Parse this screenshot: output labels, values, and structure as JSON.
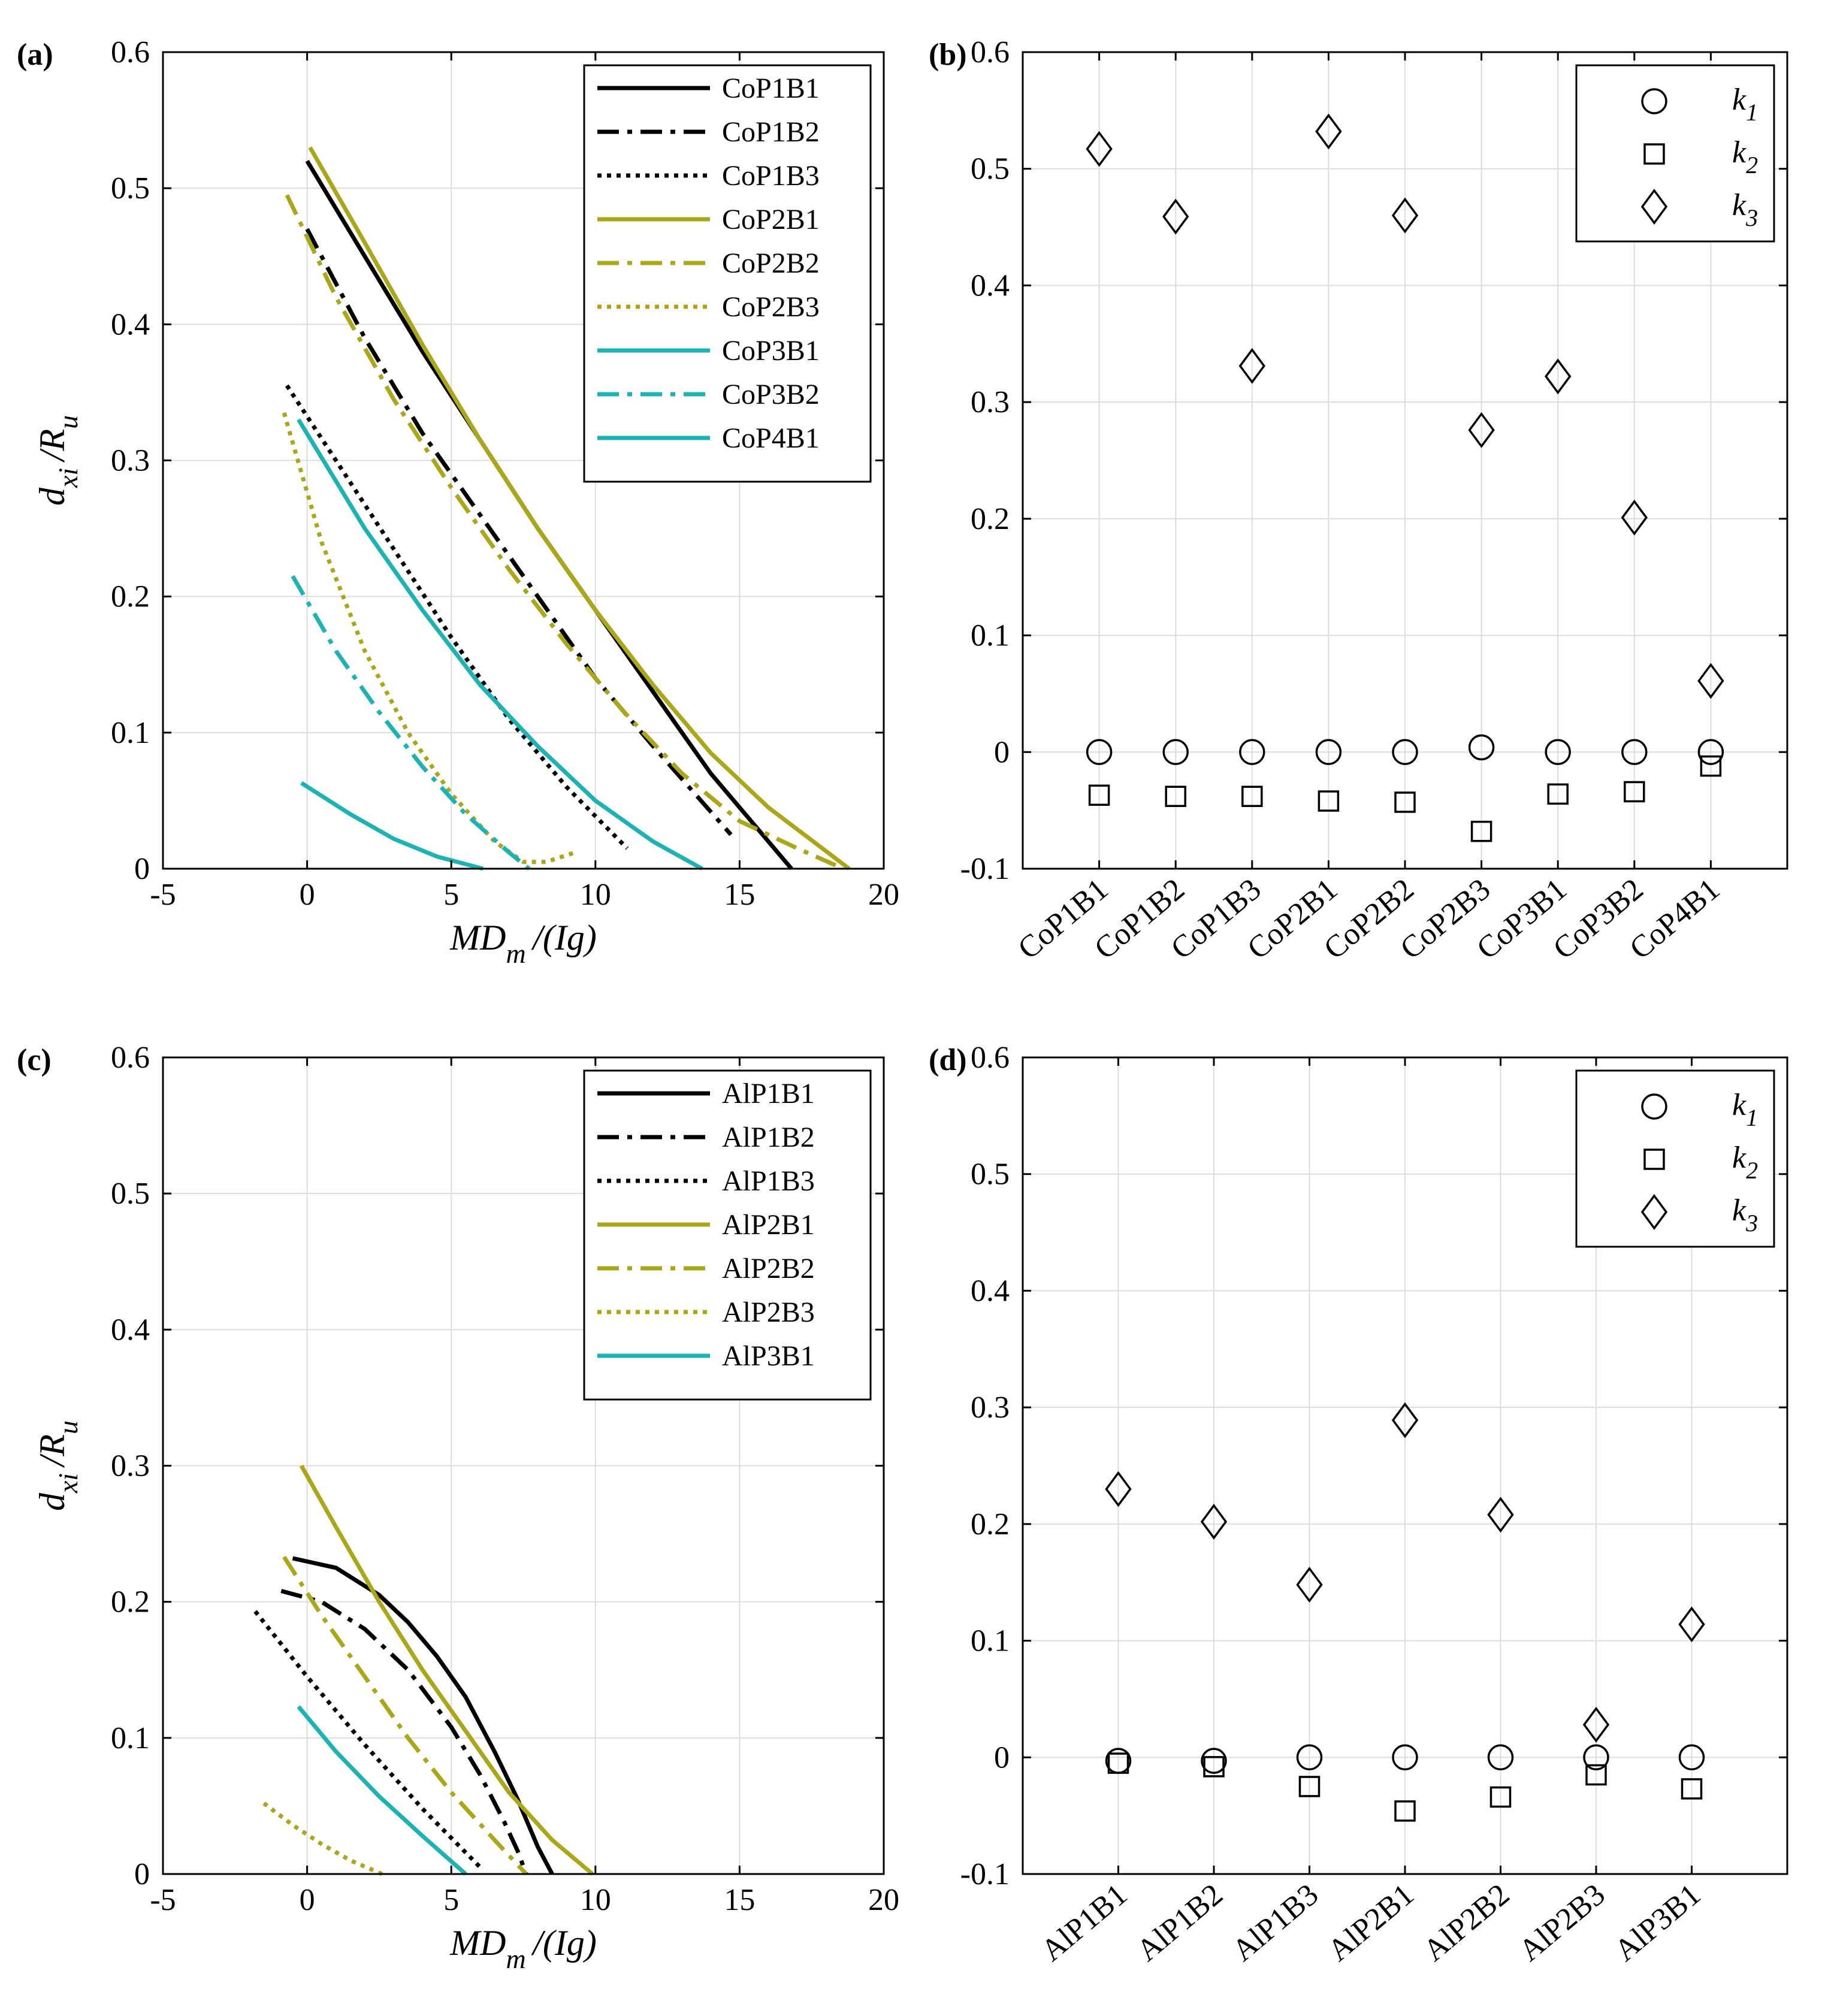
{
  "figure": {
    "panels": [
      "(a)",
      "(b)",
      "(c)",
      "(d)"
    ]
  },
  "colors": {
    "black": "#000000",
    "olive": "#A8A81A",
    "teal": "#1FB2B2",
    "grid": "#DCDCDC"
  },
  "chart_data": [
    {
      "id": "a",
      "panel_label": "(a)",
      "type": "line",
      "xlabel": "MD_m /(Ig)",
      "ylabel": "d_xi /R_u",
      "xlim": [
        -5,
        20
      ],
      "ylim": [
        0,
        0.6
      ],
      "xticks": [
        -5,
        0,
        5,
        10,
        15,
        20
      ],
      "yticks": [
        0,
        0.1,
        0.2,
        0.3,
        0.4,
        0.5,
        0.6
      ],
      "grid": true,
      "legend": "top-right",
      "series": [
        {
          "name": "CoP1B1",
          "color": "black",
          "dash": "solid",
          "x": [
            0,
            2,
            4,
            6,
            8,
            10,
            12,
            14,
            16.8
          ],
          "y": [
            0.52,
            0.45,
            0.38,
            0.315,
            0.25,
            0.19,
            0.13,
            0.07,
            0.0
          ]
        },
        {
          "name": "CoP1B2",
          "color": "black",
          "dash": "dashdot",
          "x": [
            0,
            2,
            4,
            6,
            8,
            10,
            12,
            14.7
          ],
          "y": [
            0.47,
            0.39,
            0.32,
            0.26,
            0.2,
            0.14,
            0.09,
            0.025
          ]
        },
        {
          "name": "CoP1B3",
          "color": "black",
          "dash": "dotted",
          "x": [
            -0.7,
            1,
            3,
            5,
            7,
            9,
            11.1
          ],
          "y": [
            0.355,
            0.3,
            0.235,
            0.17,
            0.11,
            0.06,
            0.015
          ]
        },
        {
          "name": "CoP2B1",
          "color": "olive",
          "dash": "solid",
          "x": [
            0.1,
            2,
            4,
            6,
            8,
            10,
            12,
            14,
            16,
            18.8
          ],
          "y": [
            0.53,
            0.46,
            0.385,
            0.315,
            0.25,
            0.19,
            0.135,
            0.085,
            0.045,
            0.0
          ]
        },
        {
          "name": "CoP2B2",
          "color": "olive",
          "dash": "dashdot",
          "x": [
            -0.7,
            1,
            3,
            5,
            7,
            9,
            11,
            13,
            15,
            17,
            18.6
          ],
          "y": [
            0.495,
            0.42,
            0.345,
            0.28,
            0.22,
            0.165,
            0.115,
            0.07,
            0.035,
            0.015,
            0.0
          ]
        },
        {
          "name": "CoP2B3",
          "color": "olive",
          "dash": "dotted",
          "x": [
            -0.8,
            0.5,
            2,
            3.5,
            5,
            6.5,
            7.5,
            8.3,
            9.3
          ],
          "y": [
            0.335,
            0.24,
            0.16,
            0.1,
            0.055,
            0.02,
            0.005,
            0.005,
            0.012
          ]
        },
        {
          "name": "CoP3B1",
          "color": "teal",
          "dash": "solid",
          "x": [
            -0.3,
            2,
            4,
            6,
            8,
            10,
            12,
            13.7
          ],
          "y": [
            0.33,
            0.25,
            0.19,
            0.135,
            0.09,
            0.05,
            0.02,
            0.0
          ]
        },
        {
          "name": "CoP3B2",
          "color": "teal",
          "dash": "dashdot",
          "x": [
            -0.5,
            1,
            2.5,
            4,
            5.5,
            7,
            7.7
          ],
          "y": [
            0.215,
            0.16,
            0.115,
            0.075,
            0.04,
            0.012,
            0.0
          ]
        },
        {
          "name": "CoP4B1",
          "color": "teal",
          "dash": "solid",
          "x": [
            -0.2,
            1.5,
            3,
            4.5,
            6.1
          ],
          "y": [
            0.063,
            0.04,
            0.022,
            0.009,
            0.0
          ]
        }
      ]
    },
    {
      "id": "b",
      "panel_label": "(b)",
      "type": "scatter",
      "categories": [
        "CoP1B1",
        "CoP1B2",
        "CoP1B3",
        "CoP2B1",
        "CoP2B2",
        "CoP2B3",
        "CoP3B1",
        "CoP3B2",
        "CoP4B1"
      ],
      "ylim": [
        -0.1,
        0.6
      ],
      "yticks": [
        -0.1,
        0,
        0.1,
        0.2,
        0.3,
        0.4,
        0.5,
        0.6
      ],
      "grid": true,
      "legend": "top-right",
      "series": [
        {
          "name": "k1",
          "base": "k",
          "sub": "1",
          "marker": "circle",
          "values": [
            0.0,
            0.0,
            0.0,
            0.0,
            0.0,
            0.004,
            0.0,
            0.0,
            0.0
          ]
        },
        {
          "name": "k2",
          "base": "k",
          "sub": "2",
          "marker": "square",
          "values": [
            -0.037,
            -0.038,
            -0.038,
            -0.042,
            -0.043,
            -0.068,
            -0.036,
            -0.034,
            -0.012
          ]
        },
        {
          "name": "k3",
          "base": "k",
          "sub": "3",
          "marker": "diamond",
          "values": [
            0.517,
            0.459,
            0.331,
            0.532,
            0.46,
            0.276,
            0.322,
            0.201,
            0.061
          ]
        }
      ]
    },
    {
      "id": "c",
      "panel_label": "(c)",
      "type": "line",
      "xlabel": "MD_m /(Ig)",
      "ylabel": "d_xi /R_u",
      "xlim": [
        -5,
        20
      ],
      "ylim": [
        0,
        0.6
      ],
      "xticks": [
        -5,
        0,
        5,
        10,
        15,
        20
      ],
      "yticks": [
        0,
        0.1,
        0.2,
        0.3,
        0.4,
        0.5,
        0.6
      ],
      "grid": true,
      "legend": "top-right",
      "series": [
        {
          "name": "AlP1B1",
          "color": "black",
          "dash": "solid",
          "x": [
            -0.5,
            1,
            2.5,
            3.5,
            4.5,
            5.5,
            6.5,
            7.3,
            8,
            8.5
          ],
          "y": [
            0.232,
            0.225,
            0.205,
            0.185,
            0.16,
            0.13,
            0.09,
            0.055,
            0.02,
            0.0
          ]
        },
        {
          "name": "AlP1B2",
          "color": "black",
          "dash": "dashdot",
          "x": [
            -0.9,
            0.5,
            2,
            3.5,
            5,
            6,
            6.8,
            7.3,
            7.6
          ],
          "y": [
            0.208,
            0.2,
            0.18,
            0.15,
            0.108,
            0.073,
            0.04,
            0.017,
            0.0
          ]
        },
        {
          "name": "AlP1B3",
          "color": "black",
          "dash": "dotted",
          "x": [
            -1.8,
            0,
            2,
            4,
            6
          ],
          "y": [
            0.193,
            0.145,
            0.095,
            0.048,
            0.005
          ]
        },
        {
          "name": "AlP2B1",
          "color": "olive",
          "dash": "solid",
          "x": [
            -0.2,
            1,
            2.5,
            4,
            5.5,
            7,
            8.5,
            9.9
          ],
          "y": [
            0.3,
            0.255,
            0.2,
            0.15,
            0.105,
            0.06,
            0.025,
            0.0
          ]
        },
        {
          "name": "AlP2B2",
          "color": "olive",
          "dash": "dashdot",
          "x": [
            -0.8,
            0.5,
            2,
            3.5,
            5,
            6.5,
            7.6
          ],
          "y": [
            0.233,
            0.19,
            0.145,
            0.1,
            0.06,
            0.025,
            0.0
          ]
        },
        {
          "name": "AlP2B3",
          "color": "olive",
          "dash": "dotted",
          "x": [
            -1.5,
            -0.5,
            0.5,
            1.5,
            2.6
          ],
          "y": [
            0.052,
            0.036,
            0.022,
            0.01,
            0.0
          ]
        },
        {
          "name": "AlP3B1",
          "color": "teal",
          "dash": "solid",
          "x": [
            -0.3,
            1,
            2.5,
            4,
            5.5
          ],
          "y": [
            0.123,
            0.09,
            0.057,
            0.028,
            0.0
          ]
        }
      ]
    },
    {
      "id": "d",
      "panel_label": "(d)",
      "type": "scatter",
      "categories": [
        "AlP1B1",
        "AlP1B2",
        "AlP1B3",
        "AlP2B1",
        "AlP2B2",
        "AlP2B3",
        "AlP3B1"
      ],
      "ylim": [
        -0.1,
        0.6
      ],
      "yticks": [
        -0.1,
        0,
        0.1,
        0.2,
        0.3,
        0.4,
        0.5,
        0.6
      ],
      "grid": true,
      "legend": "top-right",
      "series": [
        {
          "name": "k1",
          "base": "k",
          "sub": "1",
          "marker": "circle",
          "values": [
            -0.003,
            -0.003,
            0.0,
            0.0,
            0.0,
            0.0,
            0.0
          ]
        },
        {
          "name": "k2",
          "base": "k",
          "sub": "2",
          "marker": "square",
          "values": [
            -0.005,
            -0.008,
            -0.025,
            -0.046,
            -0.034,
            -0.015,
            -0.027
          ]
        },
        {
          "name": "k3",
          "base": "k",
          "sub": "3",
          "marker": "diamond",
          "values": [
            0.23,
            0.202,
            0.148,
            0.289,
            0.208,
            0.028,
            0.114
          ]
        }
      ]
    }
  ]
}
